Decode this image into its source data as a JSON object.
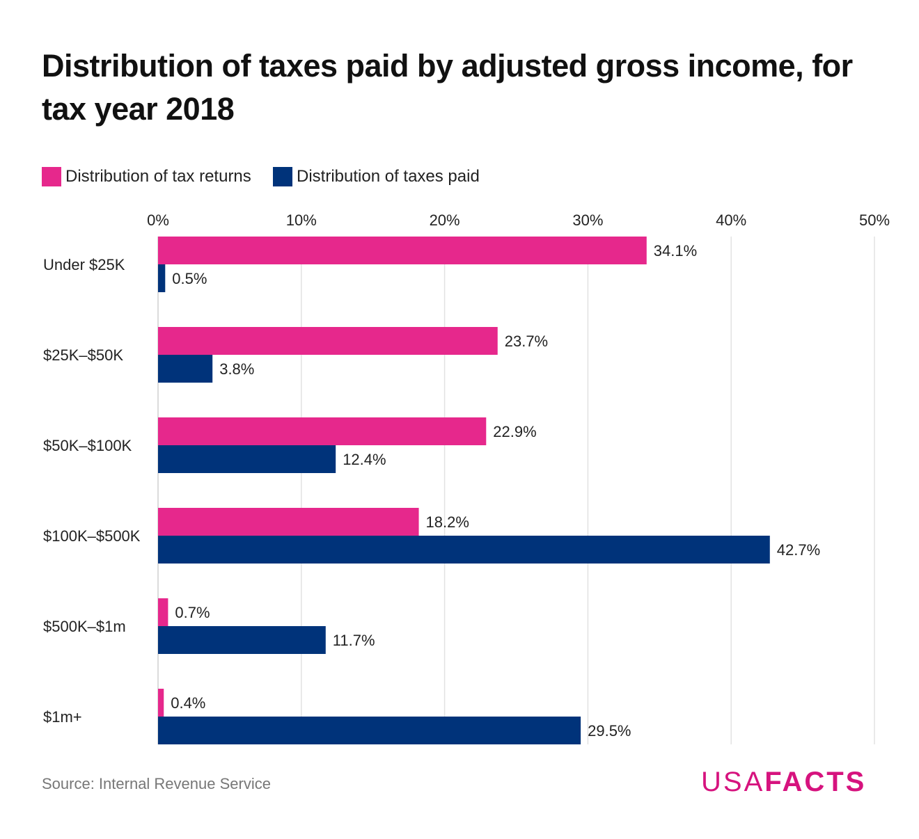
{
  "chart_data": {
    "type": "bar",
    "orientation": "horizontal",
    "title": "Distribution of taxes paid by adjusted gross income, for tax year 2018",
    "categories": [
      "Under $25K",
      "$25K–$50K",
      "$50K–$100K",
      "$100K–$500K",
      "$500K–$1m",
      "$1m+"
    ],
    "series": [
      {
        "name": "Distribution of tax returns",
        "color": "#e6288c",
        "values": [
          34.1,
          23.7,
          22.9,
          18.2,
          0.7,
          0.4
        ],
        "labels": [
          "34.1%",
          "23.7%",
          "22.9%",
          "18.2%",
          "0.7%",
          "0.4%"
        ]
      },
      {
        "name": "Distribution of taxes paid",
        "color": "#00337a",
        "values": [
          0.5,
          3.8,
          12.4,
          42.7,
          11.7,
          29.5
        ],
        "labels": [
          "0.5%",
          "3.8%",
          "12.4%",
          "42.7%",
          "11.7%",
          "29.5%"
        ]
      }
    ],
    "xlim": [
      0,
      50
    ],
    "xticks": [
      0,
      10,
      20,
      30,
      40,
      50
    ],
    "xtick_labels": [
      "0%",
      "10%",
      "20%",
      "30%",
      "40%",
      "50%"
    ],
    "grid": true,
    "legend_position": "top-left",
    "xlabel": "",
    "ylabel": ""
  },
  "source": "Source: Internal Revenue Service",
  "logo": {
    "usa": "USA",
    "facts": "FACTS",
    "color": "#d6137e"
  }
}
